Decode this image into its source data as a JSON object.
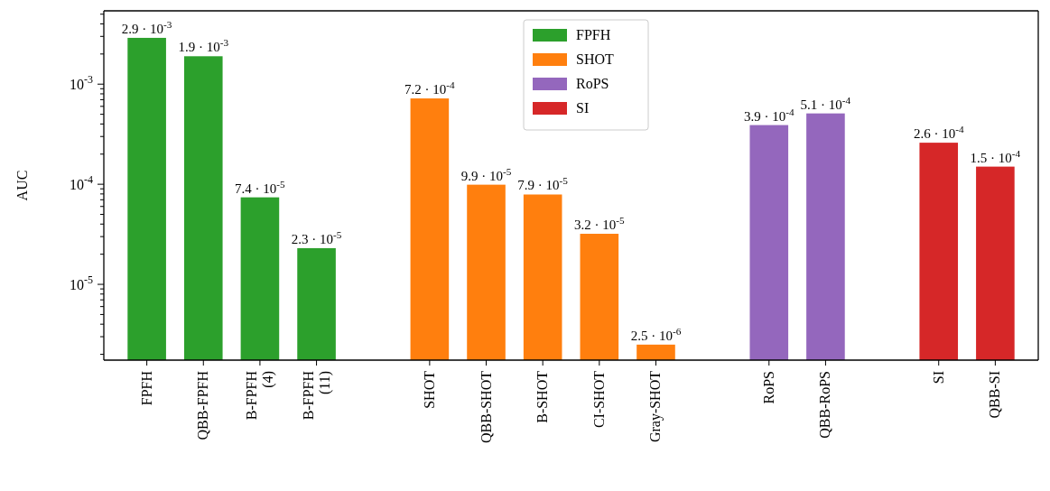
{
  "chart_data": {
    "type": "bar",
    "ylabel": "AUC",
    "log": true,
    "legend": "top",
    "grid": false,
    "categories": [
      "FPFH",
      "QBB-FPFH",
      "B-FPFH\n(4)",
      "B-FPFH\n(11)",
      null,
      "SHOT",
      "QBB-SHOT",
      "B-SHOT",
      "CI-SHOT",
      "Gray-SHOT",
      null,
      "RoPS",
      "QBB-RoPS",
      null,
      "SI",
      "QBB-SI"
    ],
    "ylim": [
      1.75e-06,
      0.0054
    ],
    "yticks": [
      {
        "value": 1e-05,
        "label": "10$^{-5}$"
      },
      {
        "value": 0.0001,
        "label": "10$^{-4}$"
      },
      {
        "value": 0.001,
        "label": "10$^{-3}$"
      },
      {
        "value": 2e-06,
        "label": null
      },
      {
        "value": 3e-06,
        "label": null
      },
      {
        "value": 4e-06,
        "label": null
      },
      {
        "value": 5e-06,
        "label": null
      },
      {
        "value": 6e-06,
        "label": null
      },
      {
        "value": 7e-06,
        "label": null
      },
      {
        "value": 8e-06,
        "label": null
      },
      {
        "value": 9e-06,
        "label": null
      },
      {
        "value": 2e-05,
        "label": null
      },
      {
        "value": 3e-05,
        "label": null
      },
      {
        "value": 4e-05,
        "label": null
      },
      {
        "value": 5e-05,
        "label": null
      },
      {
        "value": 6e-05,
        "label": null
      },
      {
        "value": 7e-05,
        "label": null
      },
      {
        "value": 8e-05,
        "label": null
      },
      {
        "value": 9e-05,
        "label": null
      },
      {
        "value": 0.0002,
        "label": null
      },
      {
        "value": 0.0003,
        "label": null
      },
      {
        "value": 0.0004,
        "label": null
      },
      {
        "value": 0.0005,
        "label": null
      },
      {
        "value": 0.0006,
        "label": null
      },
      {
        "value": 0.0007,
        "label": null
      },
      {
        "value": 0.0008,
        "label": null
      },
      {
        "value": 0.0009,
        "label": null
      },
      {
        "value": 0.002,
        "label": null
      },
      {
        "value": 0.003,
        "label": null
      },
      {
        "value": 0.004,
        "label": null
      },
      {
        "value": 0.005,
        "label": null
      }
    ],
    "series": [
      {
        "name": "FPFH",
        "color": "#2ca02c",
        "values": [
          0.0029,
          0.0019,
          7.4e-05,
          2.3e-05,
          null,
          null,
          null,
          null,
          null,
          null,
          null,
          null,
          null,
          null,
          null,
          null
        ],
        "value_labels": [
          "2.9 · 10$^{-3}$",
          "1.9 · 10$^{-3}$",
          "7.4 · 10$^{-5}$",
          "2.3 · 10$^{-5}$",
          null,
          null,
          null,
          null,
          null,
          null,
          null,
          null,
          null,
          null,
          null,
          null
        ]
      },
      {
        "name": "SHOT",
        "color": "#ff7f0e",
        "values": [
          null,
          null,
          null,
          null,
          null,
          0.00072,
          9.9e-05,
          7.9e-05,
          3.2e-05,
          2.5e-06,
          null,
          null,
          null,
          null,
          null,
          null
        ],
        "value_labels": [
          null,
          null,
          null,
          null,
          null,
          "7.2 · 10$^{-4}$",
          "9.9 · 10$^{-5}$",
          "7.9 · 10$^{-5}$",
          "3.2 · 10$^{-5}$",
          "2.5 · 10$^{-6}$",
          null,
          null,
          null,
          null,
          null,
          null
        ]
      },
      {
        "name": "RoPS",
        "color": "#9467bd",
        "values": [
          null,
          null,
          null,
          null,
          null,
          null,
          null,
          null,
          null,
          null,
          null,
          0.00039,
          0.00051,
          null,
          null,
          null
        ],
        "value_labels": [
          null,
          null,
          null,
          null,
          null,
          null,
          null,
          null,
          null,
          null,
          null,
          "3.9 · 10$^{-4}$",
          "5.1 · 10$^{-4}$",
          null,
          null,
          null
        ]
      },
      {
        "name": "SI",
        "color": "#d62728",
        "values": [
          null,
          null,
          null,
          null,
          null,
          null,
          null,
          null,
          null,
          null,
          null,
          null,
          null,
          null,
          0.00026,
          0.00015
        ],
        "value_labels": [
          null,
          null,
          null,
          null,
          null,
          null,
          null,
          null,
          null,
          null,
          null,
          null,
          null,
          null,
          "2.6 · 10$^{-4}$",
          "1.5 · 10$^{-4}$"
        ]
      }
    ]
  }
}
